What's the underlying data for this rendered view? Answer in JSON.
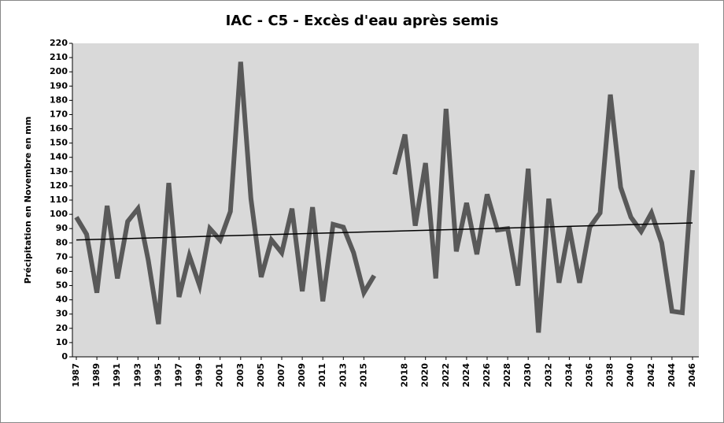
{
  "chart_data": {
    "type": "line",
    "title": "IAC - C5 - Excès d'eau après semis",
    "y_label": "Précipitation en Novembre en mm",
    "categories": [
      "1987",
      null,
      "1989",
      null,
      "1991",
      null,
      "1993",
      null,
      "1995",
      null,
      "1997",
      null,
      "1999",
      null,
      "2001",
      null,
      "2003",
      null,
      "2005",
      null,
      "2007",
      null,
      "2009",
      null,
      "2011",
      null,
      "2013",
      null,
      "2015",
      null,
      null,
      null,
      "2018",
      null,
      "2020",
      null,
      "2022",
      null,
      "2024",
      null,
      "2026",
      null,
      "2028",
      null,
      "2030",
      null,
      "2032",
      null,
      "2034",
      null,
      "2036",
      null,
      "2038",
      null,
      "2040",
      null,
      "2042",
      null,
      "2044",
      null,
      "2046"
    ],
    "series": [
      {
        "color": "#595959",
        "values": [
          98,
          86,
          45,
          106,
          55,
          95,
          104,
          68,
          23,
          122,
          42,
          71,
          50,
          90,
          82,
          102,
          207,
          111,
          56,
          82,
          73,
          104,
          46,
          105,
          39,
          93,
          91,
          73,
          45,
          57,
          null,
          128,
          156,
          92,
          136,
          55,
          174,
          74,
          108,
          72,
          114,
          89,
          90,
          50,
          132,
          17,
          111,
          52,
          91,
          52,
          91,
          101,
          184,
          119,
          98,
          88,
          101,
          80,
          32,
          31,
          131
        ]
      }
    ],
    "trend": {
      "color": "#000000",
      "values": [
        82,
        94
      ]
    },
    "ylim": [
      0,
      220
    ],
    "yticks": [
      0,
      10,
      20,
      30,
      40,
      50,
      60,
      70,
      80,
      90,
      100,
      110,
      120,
      130,
      140,
      150,
      160,
      170,
      180,
      190,
      200,
      210,
      220
    ],
    "grid": false,
    "plot_background": "#d9d9d9"
  }
}
